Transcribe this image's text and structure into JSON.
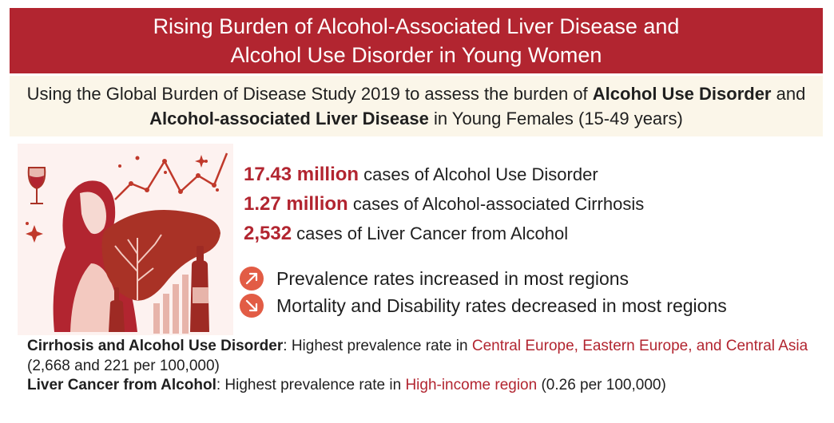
{
  "title": {
    "line1": "Rising Burden of Alcohol-Associated Liver Disease and",
    "line2": "Alcohol Use Disorder in Young Women"
  },
  "subtitle": {
    "p1": "Using the Global Burden of Disease Study 2019 to assess the burden of ",
    "b1": "Alcohol Use Disorder",
    "p2": " and ",
    "b2": "Alcohol-associated Liver Disease",
    "p3": " in Young Females (15-49 years)"
  },
  "stats": [
    {
      "number": "17.43 million",
      "text": " cases of Alcohol Use Disorder"
    },
    {
      "number": "1.27 million",
      "text": " cases of Alcohol-associated Cirrhosis"
    },
    {
      "number": "2,532",
      "text": " cases of Liver Cancer from Alcohol"
    }
  ],
  "trends": [
    {
      "icon": "arrow-up-right-icon",
      "text": "Prevalence rates increased in most regions"
    },
    {
      "icon": "arrow-down-right-icon",
      "text": "Mortality and Disability rates decreased in most regions"
    }
  ],
  "footnotes": {
    "cirrhosis": {
      "label": "Cirrhosis and Alcohol Use Disorder",
      "text": ": Highest prevalence rate in ",
      "region": "Central Europe, Eastern Europe, and Central Asia",
      "value": " (2,668 and 221 per 100,000)"
    },
    "cancer": {
      "label": "Liver Cancer from Alcohol",
      "text": ": Highest prevalence rate in ",
      "region": "High-income region",
      "value": " (0.26 per 100,000)"
    }
  },
  "colors": {
    "accent": "#b22530",
    "icon": "#e25c45",
    "subtitle_bg": "#fbf6e9"
  }
}
